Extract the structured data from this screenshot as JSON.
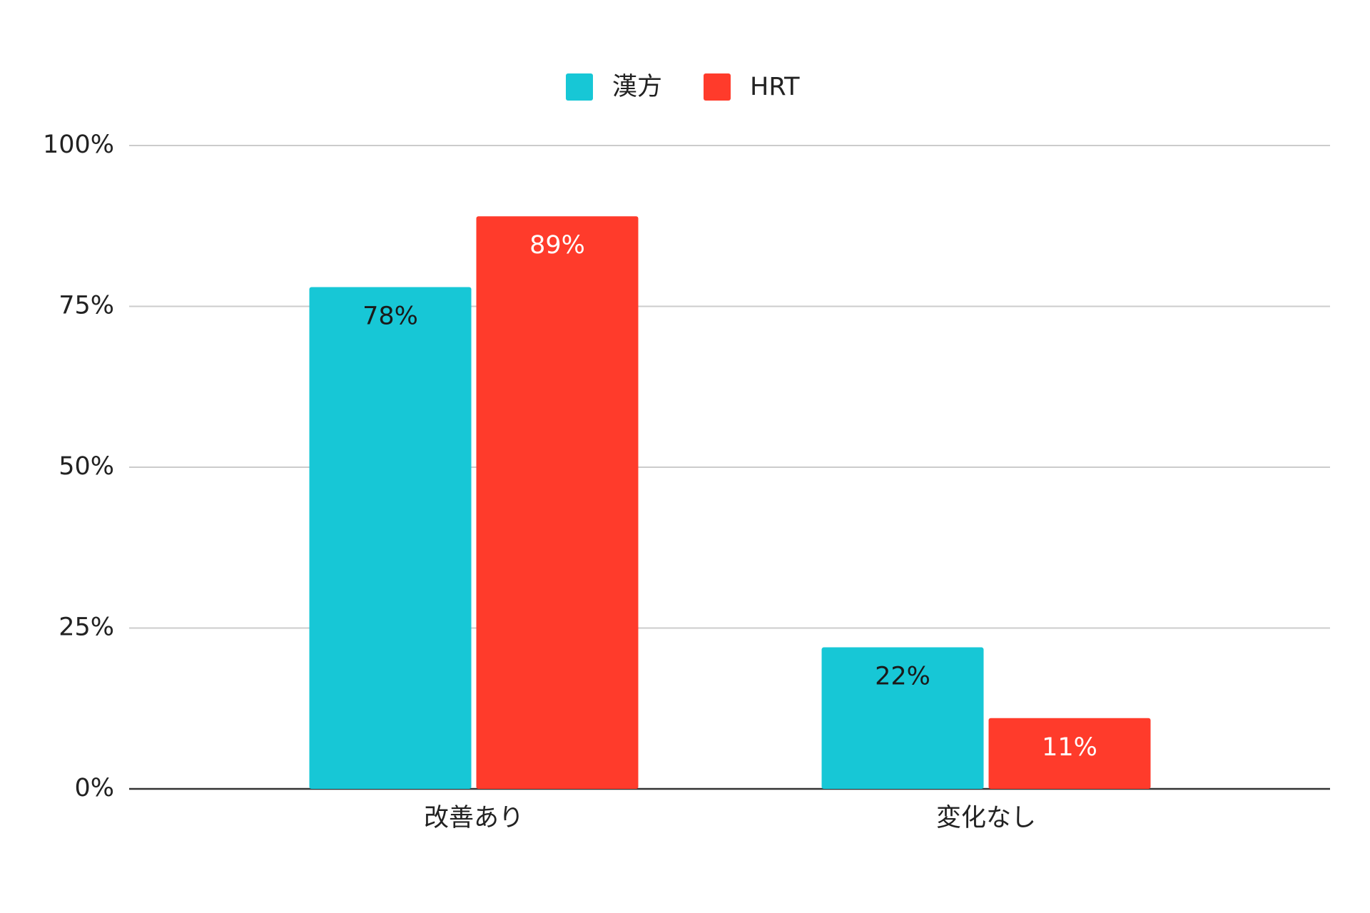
{
  "chart_data": {
    "type": "bar",
    "categories": [
      "改善あり",
      "変化なし"
    ],
    "series": [
      {
        "name": "漢方",
        "color": "#17c7d6",
        "values": [
          78,
          22
        ],
        "value_labels": [
          "78%",
          "22%"
        ],
        "label_color": "#1a1a1a"
      },
      {
        "name": "HRT",
        "color": "#ff3b2b",
        "values": [
          89,
          11
        ],
        "value_labels": [
          "89%",
          "11%"
        ],
        "label_color": "#ffffff"
      }
    ],
    "ylim": [
      0,
      100
    ],
    "yticks": [
      {
        "value": 0,
        "label": "0%"
      },
      {
        "value": 25,
        "label": "25%"
      },
      {
        "value": 50,
        "label": "50%"
      },
      {
        "value": 75,
        "label": "75%"
      },
      {
        "value": 100,
        "label": "100%"
      }
    ],
    "grid": true,
    "legend": "top"
  }
}
